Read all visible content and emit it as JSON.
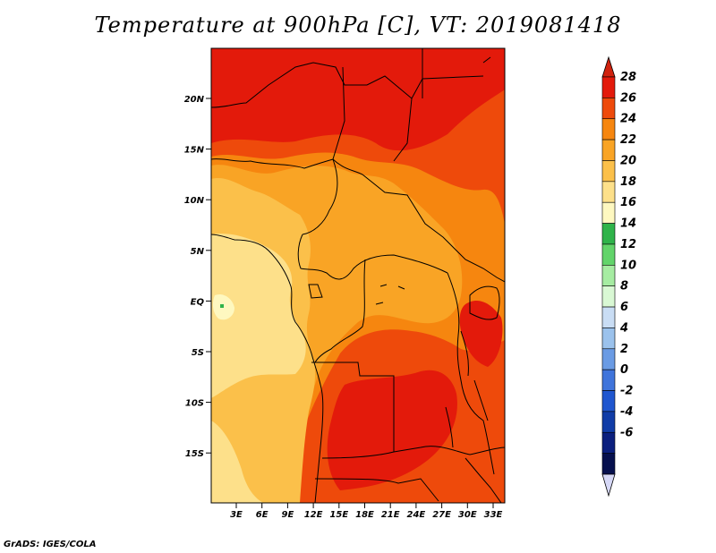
{
  "title": "Temperature at 900hPa [C], VT: 2019081418",
  "credit": "GrADS: IGES/COLA",
  "map": {
    "lat_labels": [
      "20N",
      "15N",
      "10N",
      "5N",
      "EQ",
      "5S",
      "10S",
      "15S"
    ],
    "lon_labels": [
      "3E",
      "6E",
      "9E",
      "12E",
      "15E",
      "18E",
      "21E",
      "24E",
      "27E",
      "30E",
      "33E"
    ]
  },
  "colorbar": {
    "labels": [
      "28",
      "26",
      "24",
      "22",
      "20",
      "18",
      "16",
      "14",
      "12",
      "10",
      "8",
      "6",
      "4",
      "2",
      "0",
      "-2",
      "-4",
      "-6"
    ],
    "colors": [
      "#e31a0b",
      "#ee4a0b",
      "#f6860f",
      "#f9a425",
      "#fbc04a",
      "#fde08a",
      "#fef8c0",
      "#2fb34a",
      "#62d46a",
      "#a6eca2",
      "#d9f8d4",
      "#c9ddf4",
      "#9bc2ec",
      "#6a9be4",
      "#3f74db",
      "#1f56cf",
      "#103ca7",
      "#0b1f7e",
      "#06104e"
    ],
    "top_arrow_color": "#d0220e",
    "bottom_arrow_color": "#d6d8f7"
  }
}
